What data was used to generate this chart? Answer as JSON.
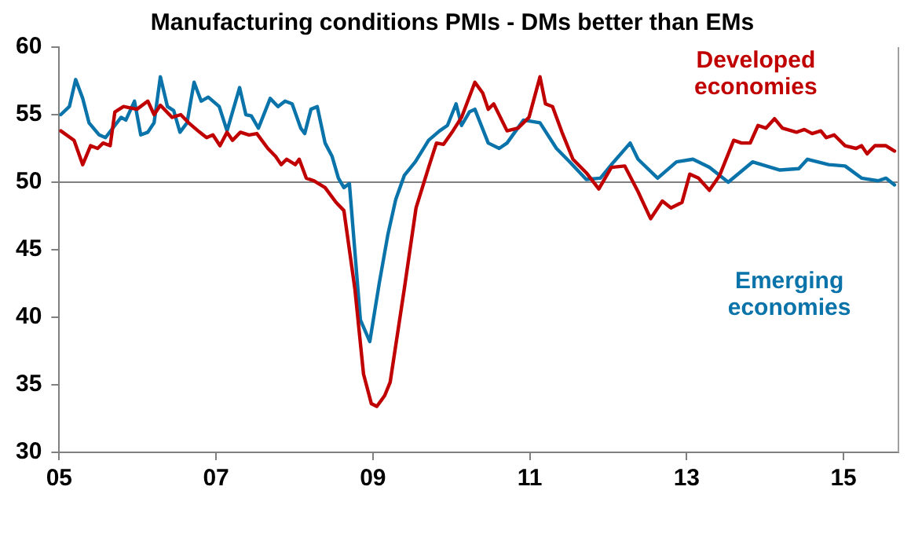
{
  "chart_data": {
    "type": "line",
    "title": "Manufacturing conditions PMIs - DMs better than EMs",
    "xlim": [
      2005,
      2015.7
    ],
    "xticks": [
      {
        "value": 2005,
        "label": "05"
      },
      {
        "value": 2007,
        "label": "07"
      },
      {
        "value": 2009,
        "label": "09"
      },
      {
        "value": 2011,
        "label": "11"
      },
      {
        "value": 2013,
        "label": "13"
      },
      {
        "value": 2015,
        "label": "15"
      }
    ],
    "ylim": [
      30,
      60
    ],
    "yticks": [
      30,
      35,
      40,
      45,
      50,
      55,
      60
    ],
    "grid": false,
    "legend": false,
    "marker": "none",
    "line_style": "solid",
    "ref_lines": [
      {
        "axis": "y",
        "value": 50,
        "color": "#7f7f7f"
      }
    ],
    "series": [
      {
        "name": "Developed economies",
        "color": "#c00000",
        "x": [
          2005.02,
          2005.19,
          2005.3,
          2005.4,
          2005.49,
          2005.56,
          2005.65,
          2005.71,
          2005.82,
          2005.99,
          2006.13,
          2006.21,
          2006.29,
          2006.44,
          2006.55,
          2006.65,
          2006.77,
          2006.88,
          2006.96,
          2007.05,
          2007.14,
          2007.21,
          2007.31,
          2007.42,
          2007.52,
          2007.66,
          2007.76,
          2007.83,
          2007.9,
          2008.01,
          2008.06,
          2008.15,
          2008.25,
          2008.39,
          2008.53,
          2008.63,
          2008.77,
          2008.88,
          2008.98,
          2009.05,
          2009.15,
          2009.22,
          2009.4,
          2009.55,
          2009.71,
          2009.81,
          2009.9,
          2010.02,
          2010.13,
          2010.3,
          2010.4,
          2010.47,
          2010.54,
          2010.71,
          2010.85,
          2010.99,
          2011.13,
          2011.2,
          2011.29,
          2011.41,
          2011.55,
          2011.72,
          2011.88,
          2012.04,
          2012.21,
          2012.38,
          2012.54,
          2012.69,
          2012.8,
          2012.94,
          2013.04,
          2013.15,
          2013.29,
          2013.42,
          2013.6,
          2013.7,
          2013.81,
          2013.91,
          2014.01,
          2014.12,
          2014.22,
          2014.4,
          2014.5,
          2014.6,
          2014.71,
          2014.78,
          2014.88,
          2015.02,
          2015.16,
          2015.23,
          2015.3,
          2015.4,
          2015.54,
          2015.65
        ],
        "values": [
          53.8,
          53.1,
          51.3,
          52.7,
          52.5,
          52.9,
          52.7,
          55.2,
          55.6,
          55.4,
          56.0,
          55.0,
          55.7,
          54.8,
          55.0,
          54.4,
          53.8,
          53.3,
          53.5,
          52.7,
          53.7,
          53.1,
          53.7,
          53.5,
          53.6,
          52.5,
          51.9,
          51.3,
          51.7,
          51.3,
          51.7,
          50.3,
          50.1,
          49.6,
          48.5,
          47.9,
          42.1,
          35.8,
          33.6,
          33.4,
          34.2,
          35.2,
          42.1,
          48.1,
          51.1,
          52.9,
          52.8,
          53.8,
          54.8,
          57.4,
          56.6,
          55.4,
          55.8,
          53.8,
          54.0,
          54.8,
          57.8,
          55.8,
          55.6,
          53.7,
          51.7,
          50.7,
          49.5,
          51.1,
          51.2,
          49.3,
          47.3,
          48.6,
          48.1,
          48.5,
          50.6,
          50.3,
          49.4,
          50.5,
          53.1,
          52.9,
          52.9,
          54.2,
          54.0,
          54.7,
          54.0,
          53.7,
          53.9,
          53.6,
          53.8,
          53.3,
          53.5,
          52.7,
          52.5,
          52.7,
          52.1,
          52.7,
          52.7,
          52.3
        ]
      },
      {
        "name": "Emerging economies",
        "color": "#0a74aa",
        "x": [
          2005.02,
          2005.13,
          2005.21,
          2005.3,
          2005.38,
          2005.51,
          2005.59,
          2005.79,
          2005.85,
          2005.96,
          2006.04,
          2006.13,
          2006.21,
          2006.29,
          2006.38,
          2006.46,
          2006.54,
          2006.63,
          2006.72,
          2006.81,
          2006.9,
          2007.04,
          2007.14,
          2007.3,
          2007.38,
          2007.45,
          2007.54,
          2007.69,
          2007.79,
          2007.88,
          2007.97,
          2008.08,
          2008.13,
          2008.21,
          2008.29,
          2008.39,
          2008.48,
          2008.56,
          2008.63,
          2008.7,
          2008.84,
          2008.96,
          2009.08,
          2009.19,
          2009.29,
          2009.4,
          2009.54,
          2009.71,
          2009.85,
          2009.95,
          2010.06,
          2010.13,
          2010.23,
          2010.3,
          2010.47,
          2010.61,
          2010.71,
          2010.92,
          2011.13,
          2011.34,
          2011.51,
          2011.72,
          2011.9,
          2012.07,
          2012.28,
          2012.38,
          2012.63,
          2012.87,
          2013.08,
          2013.29,
          2013.53,
          2013.84,
          2014.19,
          2014.43,
          2014.54,
          2014.81,
          2015.02,
          2015.23,
          2015.44,
          2015.54,
          2015.65
        ],
        "values": [
          55.0,
          55.6,
          57.6,
          56.2,
          54.4,
          53.5,
          53.3,
          54.8,
          54.6,
          56.0,
          53.5,
          53.7,
          54.4,
          57.8,
          55.6,
          55.3,
          53.7,
          54.4,
          57.4,
          56.0,
          56.3,
          55.6,
          53.8,
          57.0,
          55.0,
          54.9,
          54.0,
          56.2,
          55.6,
          56.0,
          55.8,
          54.0,
          53.6,
          55.4,
          55.6,
          52.9,
          51.9,
          50.3,
          49.6,
          49.9,
          39.8,
          38.2,
          42.5,
          46.1,
          48.7,
          50.5,
          51.5,
          53.1,
          53.8,
          54.2,
          55.8,
          54.2,
          55.2,
          55.4,
          52.9,
          52.5,
          52.9,
          54.6,
          54.4,
          52.5,
          51.5,
          50.2,
          50.3,
          51.5,
          52.9,
          51.7,
          50.3,
          51.5,
          51.7,
          51.1,
          50.0,
          51.5,
          50.9,
          51.0,
          51.7,
          51.3,
          51.2,
          50.3,
          50.1,
          50.3,
          49.8
        ]
      }
    ]
  }
}
